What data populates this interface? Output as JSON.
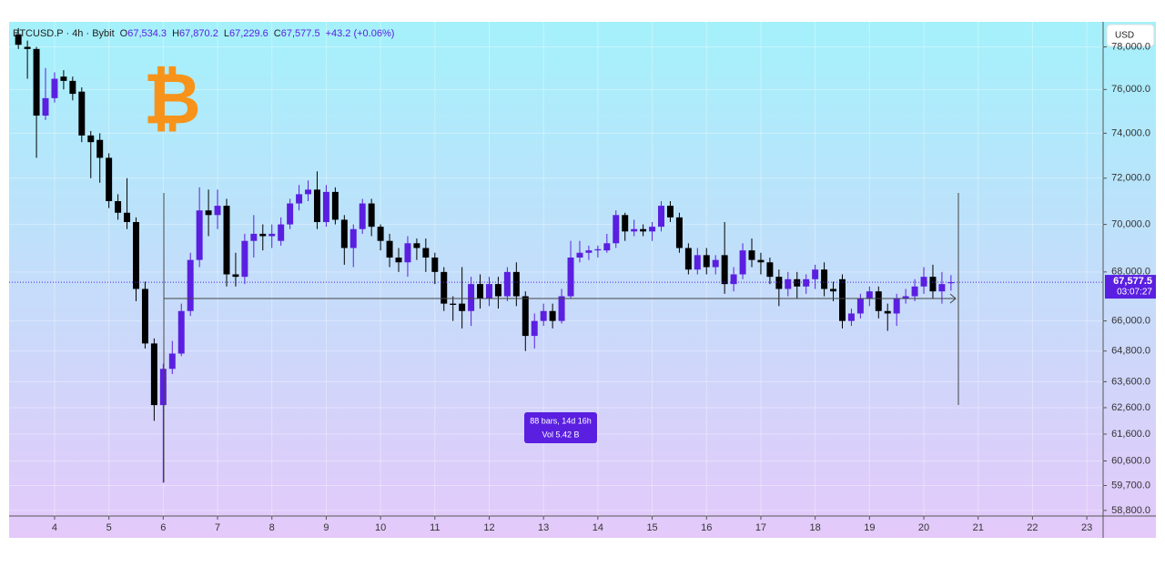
{
  "chart_data": {
    "type": "candlestick",
    "symbol": "BTCUSD.P · 4h · Bybit",
    "legend": {
      "open_label": "O",
      "open": "67,534.3",
      "high_label": "H",
      "high": "67,870.2",
      "low_label": "L",
      "low": "67,229.6",
      "close_label": "C",
      "close": "67,577.5",
      "change": "+43.2 (+0.06%)"
    },
    "currency": "USD",
    "logo": "₿",
    "last_price": {
      "value": 67577.5,
      "label": "67,577.5"
    },
    "countdown": "03:07:27",
    "measure": {
      "bars": "88 bars, 14d 16h",
      "volume": "Vol 5.42 B"
    },
    "up_color": "#5a1fe0",
    "down_color": "#000000",
    "log_scale": true,
    "xlim": [
      3.163,
      23.3
    ],
    "xticks": [
      4,
      5,
      6,
      7,
      8,
      9,
      10,
      11,
      12,
      13,
      14,
      15,
      16,
      17,
      18,
      19,
      20,
      21,
      22,
      23
    ],
    "ylim": [
      58600,
      79200
    ],
    "yticks": [
      {
        "value": 78000,
        "label": "78,000.0"
      },
      {
        "value": 76000,
        "label": "76,000.0"
      },
      {
        "value": 74000,
        "label": "74,000.0"
      },
      {
        "value": 72000,
        "label": "72,000.0"
      },
      {
        "value": 70000,
        "label": "70,000.0"
      },
      {
        "value": 68000,
        "label": "68,000.0"
      },
      {
        "value": 66000,
        "label": "66,000.0"
      },
      {
        "value": 64800,
        "label": "64,800.0"
      },
      {
        "value": 63600,
        "label": "63,600.0"
      },
      {
        "value": 62600,
        "label": "62,600.0"
      },
      {
        "value": 61600,
        "label": "61,600.0"
      },
      {
        "value": 60600,
        "label": "60,600.0"
      },
      {
        "value": 59700,
        "label": "59,700.0"
      },
      {
        "value": 58800,
        "label": "58,800.0"
      }
    ],
    "x": [
      3.3333,
      3.5,
      3.6667,
      3.8333,
      4,
      4.1667,
      4.3333,
      4.5,
      4.6667,
      4.8333,
      5,
      5.1667,
      5.3333,
      5.5,
      5.6667,
      5.8333,
      6,
      6.1667,
      6.3333,
      6.5,
      6.6667,
      6.8333,
      7,
      7.1667,
      7.3333,
      7.5,
      7.6667,
      7.8333,
      8,
      8.1667,
      8.3333,
      8.5,
      8.6667,
      8.8333,
      9,
      9.1667,
      9.3333,
      9.5,
      9.6667,
      9.8333,
      10,
      10.1667,
      10.3333,
      10.5,
      10.6667,
      10.8333,
      11,
      11.1667,
      11.3333,
      11.5,
      11.6667,
      11.8333,
      12,
      12.1667,
      12.3333,
      12.5,
      12.6667,
      12.8333,
      13,
      13.1667,
      13.3333,
      13.5,
      13.6667,
      13.8333,
      14,
      14.1667,
      14.3333,
      14.5,
      14.6667,
      14.8333,
      15,
      15.1667,
      15.3333,
      15.5,
      15.6667,
      15.8333,
      16,
      16.1667,
      16.3333,
      16.5,
      16.6667,
      16.8333,
      17,
      17.1667,
      17.3333,
      17.5,
      17.6667,
      17.8333,
      18,
      18.1667,
      18.3333,
      18.5,
      18.6667,
      18.8333,
      19,
      19.1667,
      19.3333,
      19.5,
      19.6667,
      19.8333,
      20,
      20.1667,
      20.3333,
      20.5
    ],
    "open": [
      78600,
      78000,
      77900,
      74800,
      75600,
      76600,
      76400,
      75900,
      73900,
      73700,
      72900,
      71000,
      70500,
      70100,
      67300,
      65100,
      62700,
      64100,
      64700,
      66400,
      68500,
      70600,
      70400,
      70800,
      67900,
      67800,
      69300,
      69600,
      69500,
      69300,
      70000,
      70900,
      71300,
      71500,
      70100,
      71400,
      70200,
      69000,
      69800,
      70900,
      69900,
      69300,
      68600,
      68400,
      69200,
      69000,
      68600,
      68000,
      66700,
      66700,
      66400,
      67500,
      66900,
      67500,
      67000,
      68000,
      67000,
      65400,
      66000,
      66400,
      66000,
      67000,
      68600,
      68800,
      68900,
      68900,
      69200,
      70400,
      69700,
      69800,
      69700,
      69900,
      70800,
      70300,
      69000,
      68100,
      68700,
      68200,
      68700,
      67500,
      67900,
      68900,
      68500,
      68400,
      67800,
      67300,
      67700,
      67400,
      67700,
      68100,
      67300,
      67700,
      66000,
      66300,
      66900,
      67200,
      66400,
      66300,
      66900,
      67000,
      67400,
      67800,
      67200,
      67534.3
    ],
    "high": [
      78900,
      78300,
      78000,
      77000,
      76800,
      76900,
      76600,
      76100,
      74100,
      74000,
      73100,
      71300,
      72000,
      70300,
      67600,
      65300,
      64300,
      65200,
      66700,
      68800,
      71600,
      71500,
      71500,
      71100,
      68800,
      69600,
      70400,
      70000,
      70000,
      70300,
      71100,
      71700,
      71900,
      72300,
      71700,
      71600,
      70400,
      70000,
      71100,
      71100,
      70000,
      69600,
      69000,
      69500,
      69400,
      69400,
      68800,
      68200,
      67000,
      68200,
      67800,
      67900,
      67800,
      67800,
      68200,
      68400,
      67200,
      66300,
      66700,
      66700,
      67300,
      69300,
      69300,
      69100,
      69100,
      69600,
      70600,
      70500,
      70200,
      70000,
      70100,
      71000,
      71000,
      70500,
      69200,
      69000,
      69000,
      68700,
      70100,
      68200,
      69200,
      69400,
      68800,
      68600,
      68100,
      68000,
      68000,
      67900,
      68300,
      68400,
      67600,
      67900,
      66500,
      67100,
      67400,
      67400,
      66700,
      67100,
      67300,
      67700,
      68200,
      68300,
      68000,
      67870.2
    ],
    "low": [
      77900,
      76500,
      72900,
      74600,
      75400,
      76000,
      75500,
      73600,
      72000,
      71800,
      70700,
      70200,
      69800,
      66800,
      64900,
      62100,
      59800,
      63900,
      64600,
      66200,
      68200,
      69500,
      69800,
      67400,
      67400,
      67500,
      68600,
      68900,
      69000,
      69100,
      69800,
      70600,
      71000,
      69800,
      69900,
      70000,
      68300,
      68200,
      69600,
      69500,
      68900,
      68200,
      68000,
      67800,
      68500,
      68000,
      67500,
      66400,
      66000,
      65700,
      65800,
      66500,
      66600,
      66500,
      66800,
      66600,
      64800,
      64900,
      65800,
      65700,
      65900,
      66900,
      68400,
      68500,
      68600,
      68800,
      69000,
      69300,
      69500,
      69500,
      69300,
      69700,
      70100,
      68800,
      67900,
      67900,
      67900,
      67900,
      67100,
      67200,
      67700,
      68200,
      67900,
      67500,
      66600,
      67000,
      66900,
      67100,
      67300,
      67000,
      66800,
      65700,
      65800,
      66100,
      66600,
      66100,
      65600,
      65800,
      66700,
      66800,
      67100,
      66900,
      66700,
      67229.6
    ],
    "close": [
      78100,
      77900,
      74800,
      75600,
      76500,
      76400,
      75800,
      73900,
      73600,
      72900,
      71000,
      70500,
      70100,
      67300,
      65100,
      62700,
      64100,
      64700,
      66400,
      68500,
      70600,
      70400,
      70800,
      67900,
      67800,
      69300,
      69600,
      69500,
      69600,
      70000,
      70900,
      71300,
      71500,
      70100,
      71400,
      70200,
      69000,
      69800,
      70900,
      69900,
      69300,
      68600,
      68400,
      69200,
      69000,
      68600,
      68000,
      66700,
      66650,
      66400,
      67500,
      66900,
      67500,
      67000,
      68000,
      67000,
      65400,
      66000,
      66400,
      66000,
      67000,
      68600,
      68800,
      68900,
      68950,
      69200,
      70400,
      69700,
      69800,
      69700,
      69900,
      70800,
      70300,
      69000,
      68100,
      68700,
      68200,
      68500,
      67500,
      67900,
      68900,
      68500,
      68400,
      67800,
      67300,
      67700,
      67400,
      67700,
      68100,
      67300,
      67200,
      66000,
      66300,
      66900,
      67200,
      66400,
      66300,
      66900,
      67000,
      67400,
      67800,
      67200,
      67500,
      67577.5
    ]
  }
}
